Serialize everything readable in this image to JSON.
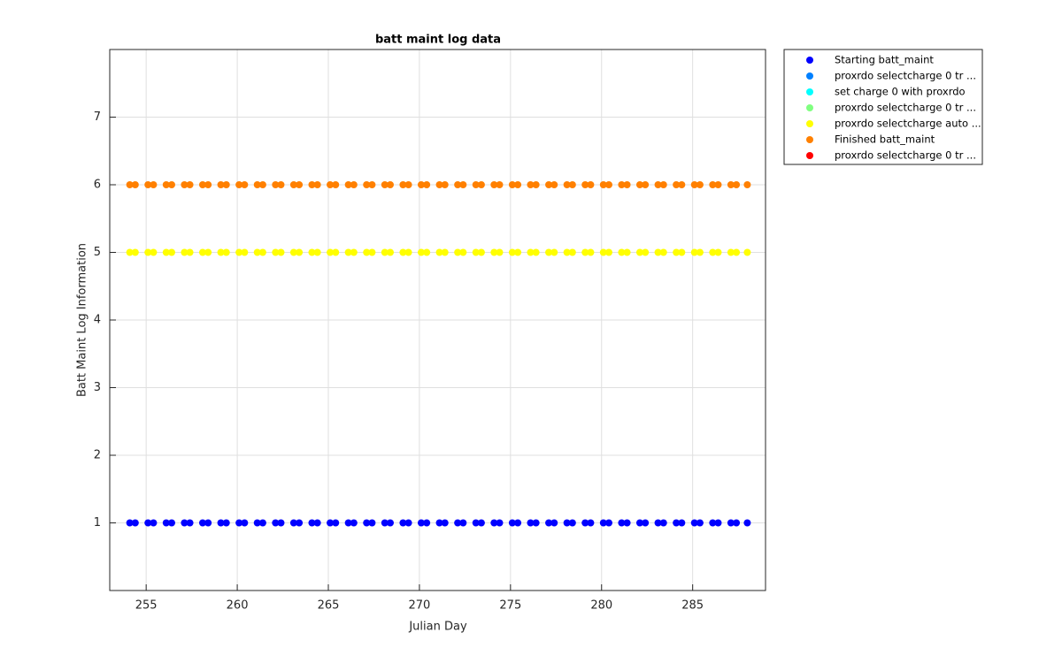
{
  "chart_data": {
    "type": "scatter",
    "title": "batt maint log data",
    "x_label": "Julian Day",
    "y_label": "Batt Maint Log Information",
    "xlim": [
      253,
      289
    ],
    "ylim": [
      0,
      8
    ],
    "xticks": [
      255,
      260,
      265,
      270,
      275,
      280,
      285
    ],
    "yticks": [
      1,
      2,
      3,
      4,
      5,
      6,
      7
    ],
    "grid": true,
    "legend": "outside-top-right",
    "series": [
      {
        "name": "Starting batt_maint",
        "color": "#0000ff",
        "x": [
          254.1,
          254.4,
          255.1,
          255.4,
          256.1,
          256.4,
          257.1,
          257.4,
          258.1,
          258.4,
          259.1,
          259.4,
          260.1,
          260.4,
          261.1,
          261.4,
          262.1,
          262.4,
          263.1,
          263.4,
          264.1,
          264.4,
          265.1,
          265.4,
          266.1,
          266.4,
          267.1,
          267.4,
          268.1,
          268.4,
          269.1,
          269.4,
          270.1,
          270.4,
          271.1,
          271.4,
          272.1,
          272.4,
          273.1,
          273.4,
          274.1,
          274.4,
          275.1,
          275.4,
          276.1,
          276.4,
          277.1,
          277.4,
          278.1,
          278.4,
          279.1,
          279.4,
          280.1,
          280.4,
          281.1,
          281.4,
          282.1,
          282.4,
          283.1,
          283.4,
          284.1,
          284.4,
          285.1,
          285.4,
          286.1,
          286.4,
          287.1,
          287.4,
          288
        ],
        "values": [
          1,
          1,
          1,
          1,
          1,
          1,
          1,
          1,
          1,
          1,
          1,
          1,
          1,
          1,
          1,
          1,
          1,
          1,
          1,
          1,
          1,
          1,
          1,
          1,
          1,
          1,
          1,
          1,
          1,
          1,
          1,
          1,
          1,
          1,
          1,
          1,
          1,
          1,
          1,
          1,
          1,
          1,
          1,
          1,
          1,
          1,
          1,
          1,
          1,
          1,
          1,
          1,
          1,
          1,
          1,
          1,
          1,
          1,
          1,
          1,
          1,
          1,
          1,
          1,
          1,
          1,
          1,
          1,
          1
        ]
      },
      {
        "name": "proxrdo selectcharge 0 tr ...",
        "color": "#0080ff",
        "x": [],
        "values": []
      },
      {
        "name": "set charge 0 with proxrdo",
        "color": "#00ffff",
        "x": [],
        "values": []
      },
      {
        "name": "proxrdo selectcharge 0 tr ...",
        "color": "#80ff80",
        "x": [],
        "values": []
      },
      {
        "name": "proxrdo selectcharge auto ...",
        "color": "#ffff00",
        "x": [
          254.1,
          254.4,
          255.1,
          255.4,
          256.1,
          256.4,
          257.1,
          257.4,
          258.1,
          258.4,
          259.1,
          259.4,
          260.1,
          260.4,
          261.1,
          261.4,
          262.1,
          262.4,
          263.1,
          263.4,
          264.1,
          264.4,
          265.1,
          265.4,
          266.1,
          266.4,
          267.1,
          267.4,
          268.1,
          268.4,
          269.1,
          269.4,
          270.1,
          270.4,
          271.1,
          271.4,
          272.1,
          272.4,
          273.1,
          273.4,
          274.1,
          274.4,
          275.1,
          275.4,
          276.1,
          276.4,
          277.1,
          277.4,
          278.1,
          278.4,
          279.1,
          279.4,
          280.1,
          280.4,
          281.1,
          281.4,
          282.1,
          282.4,
          283.1,
          283.4,
          284.1,
          284.4,
          285.1,
          285.4,
          286.1,
          286.4,
          287.1,
          287.4,
          288
        ],
        "values": [
          5,
          5,
          5,
          5,
          5,
          5,
          5,
          5,
          5,
          5,
          5,
          5,
          5,
          5,
          5,
          5,
          5,
          5,
          5,
          5,
          5,
          5,
          5,
          5,
          5,
          5,
          5,
          5,
          5,
          5,
          5,
          5,
          5,
          5,
          5,
          5,
          5,
          5,
          5,
          5,
          5,
          5,
          5,
          5,
          5,
          5,
          5,
          5,
          5,
          5,
          5,
          5,
          5,
          5,
          5,
          5,
          5,
          5,
          5,
          5,
          5,
          5,
          5,
          5,
          5,
          5,
          5,
          5,
          5
        ]
      },
      {
        "name": "Finished batt_maint",
        "color": "#ff8000",
        "x": [
          254.1,
          254.4,
          255.1,
          255.4,
          256.1,
          256.4,
          257.1,
          257.4,
          258.1,
          258.4,
          259.1,
          259.4,
          260.1,
          260.4,
          261.1,
          261.4,
          262.1,
          262.4,
          263.1,
          263.4,
          264.1,
          264.4,
          265.1,
          265.4,
          266.1,
          266.4,
          267.1,
          267.4,
          268.1,
          268.4,
          269.1,
          269.4,
          270.1,
          270.4,
          271.1,
          271.4,
          272.1,
          272.4,
          273.1,
          273.4,
          274.1,
          274.4,
          275.1,
          275.4,
          276.1,
          276.4,
          277.1,
          277.4,
          278.1,
          278.4,
          279.1,
          279.4,
          280.1,
          280.4,
          281.1,
          281.4,
          282.1,
          282.4,
          283.1,
          283.4,
          284.1,
          284.4,
          285.1,
          285.4,
          286.1,
          286.4,
          287.1,
          287.4,
          288
        ],
        "values": [
          6,
          6,
          6,
          6,
          6,
          6,
          6,
          6,
          6,
          6,
          6,
          6,
          6,
          6,
          6,
          6,
          6,
          6,
          6,
          6,
          6,
          6,
          6,
          6,
          6,
          6,
          6,
          6,
          6,
          6,
          6,
          6,
          6,
          6,
          6,
          6,
          6,
          6,
          6,
          6,
          6,
          6,
          6,
          6,
          6,
          6,
          6,
          6,
          6,
          6,
          6,
          6,
          6,
          6,
          6,
          6,
          6,
          6,
          6,
          6,
          6,
          6,
          6,
          6,
          6,
          6,
          6,
          6,
          6
        ]
      },
      {
        "name": "proxrdo selectcharge 0 tr ...",
        "color": "#ff0000",
        "x": [],
        "values": []
      }
    ]
  }
}
